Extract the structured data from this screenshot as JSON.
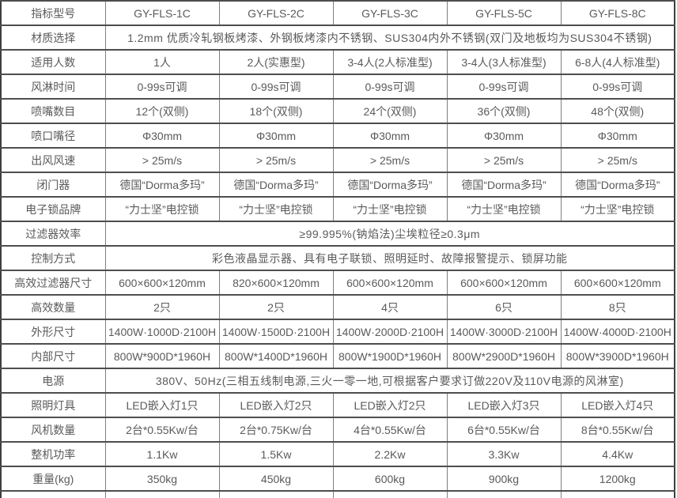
{
  "colors": {
    "text": "#5a5a5a",
    "grid-h": "#4e4e4e",
    "grid-v": "#7f7f7f",
    "frame": "#3e3e3e",
    "bg": "#ffffff"
  },
  "table": {
    "header_label": "指标型号",
    "models": [
      "GY-FLS-1C",
      "GY-FLS-2C",
      "GY-FLS-3C",
      "GY-FLS-5C",
      "GY-FLS-8C"
    ],
    "rows": [
      {
        "label": "指标型号",
        "cells": [
          "GY-FLS-1C",
          "GY-FLS-2C",
          "GY-FLS-3C",
          "GY-FLS-5C",
          "GY-FLS-8C"
        ]
      },
      {
        "label": "材质选择",
        "merged": "1.2mm 优质冷轧钢板烤漆、外钢板烤漆内不锈钢、SUS304内外不锈钢(双门及地板均为SUS304不锈钢)"
      },
      {
        "label": "适用人数",
        "cells": [
          "1人",
          "2人(实惠型)",
          "3-4人(2人标准型)",
          "3-4人(3人标准型)",
          "6-8人(4人标准型)"
        ]
      },
      {
        "label": "风淋时间",
        "cells": [
          "0-99s可调",
          "0-99s可调",
          "0-99s可调",
          "0-99s可调",
          "0-99s可调"
        ]
      },
      {
        "label": "喷嘴数目",
        "cells": [
          "12个(双侧)",
          "18个(双侧)",
          "24个(双侧)",
          "36个(双侧)",
          "48个(双侧)"
        ]
      },
      {
        "label": "喷口嘴径",
        "cells": [
          "Φ30mm",
          "Φ30mm",
          "Φ30mm",
          "Φ30mm",
          "Φ30mm"
        ]
      },
      {
        "label": "出风风速",
        "cells": [
          "> 25m/s",
          "> 25m/s",
          "> 25m/s",
          "> 25m/s",
          "> 25m/s"
        ]
      },
      {
        "label": "闭门器",
        "cells": [
          "德国“Dorma多玛”",
          "德国“Dorma多玛”",
          "德国“Dorma多玛”",
          "德国“Dorma多玛”",
          "德国“Dorma多玛”"
        ]
      },
      {
        "label": "电子锁品牌",
        "cells": [
          "“力士坚”电控锁",
          "“力士坚”电控锁",
          "“力士坚”电控锁",
          "“力士坚”电控锁",
          "“力士坚”电控锁"
        ]
      },
      {
        "label": "过滤器效率",
        "merged": "≥99.995%(钠焰法)尘埃粒径≥0.3μm"
      },
      {
        "label": "控制方式",
        "merged": "彩色液晶显示器、具有电子联锁、照明延时、故障报警提示、锁屏功能"
      },
      {
        "label": "高效过滤器尺寸",
        "cells": [
          "600×600×120mm",
          "820×600×120mm",
          "600×600×120mm",
          "600×600×120mm",
          "600×600×120mm"
        ]
      },
      {
        "label": "高效数量",
        "cells": [
          "2只",
          "2只",
          "4只",
          "6只",
          "8只"
        ]
      },
      {
        "label": "外形尺寸",
        "cells": [
          "1400W·1000D·2100H",
          "1400W·1500D·2100H",
          "1400W·2000D·2100H",
          "1400W·3000D·2100H",
          "1400W·4000D·2100H"
        ]
      },
      {
        "label": "内部尺寸",
        "cells": [
          "800W*900D*1960H",
          "800W*1400D*1960H",
          "800W*1900D*1960H",
          "800W*2900D*1960H",
          "800W*3900D*1960H"
        ]
      },
      {
        "label": "电源",
        "merged": "380V、50Hz(三相五线制电源,三火一零一地,可根据客户要求订做220V及110V电源的风淋室)"
      },
      {
        "label": "照明灯具",
        "cells": [
          "LED嵌入灯1只",
          "LED嵌入灯2只",
          "LED嵌入灯2只",
          "LED嵌入灯3只",
          "LED嵌入灯4只"
        ]
      },
      {
        "label": "风机数量",
        "cells": [
          "2台*0.55Kw/台",
          "2台*0.75Kw/台",
          "4台*0.55Kw/台",
          "6台*0.55Kw/台",
          "8台*0.55Kw/台"
        ]
      },
      {
        "label": "整机功率",
        "cells": [
          "1.1Kw",
          "1.5Kw",
          "2.2Kw",
          "3.3Kw",
          "4.4Kw"
        ]
      },
      {
        "label": "重量(kg)",
        "cells": [
          "350kg",
          "450kg",
          "600kg",
          "900kg",
          "1200kg"
        ]
      }
    ],
    "partial_row": {
      "label": "",
      "cells": [
        "",
        "",
        "",
        "",
        ""
      ]
    }
  }
}
